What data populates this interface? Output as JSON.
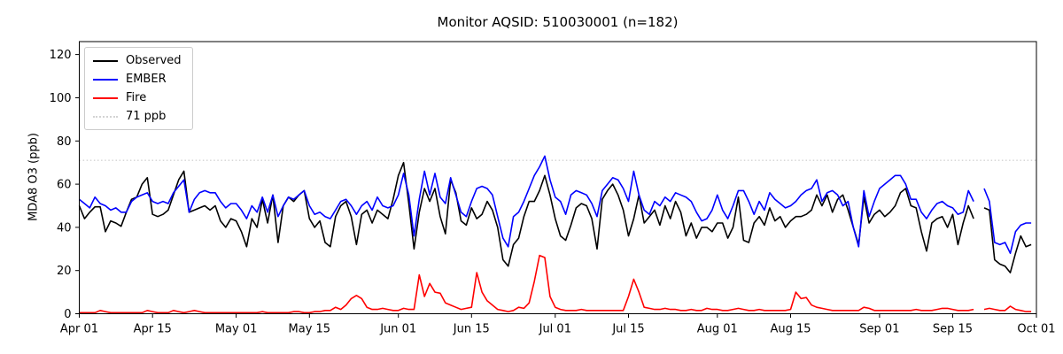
{
  "figure": {
    "title": "Monitor AQSID: 510030001 (n=182)"
  },
  "chart_data": {
    "type": "line",
    "title": "Monitor AQSID: 510030001 (n=182)",
    "xlabel": "",
    "ylabel": "MDA8 O3 (ppb)",
    "x_start": "Apr 01",
    "x_end": "Oct 01",
    "x_range_days": 183,
    "x_tick_labels": [
      "Apr 01",
      "Apr 15",
      "May 01",
      "May 15",
      "Jun 01",
      "Jun 15",
      "Jul 01",
      "Jul 15",
      "Aug 01",
      "Aug 15",
      "Sep 01",
      "Sep 15",
      "Oct 01"
    ],
    "x_tick_days": [
      0,
      14,
      30,
      44,
      61,
      75,
      91,
      105,
      122,
      136,
      153,
      167,
      183
    ],
    "y_ticks": [
      0,
      20,
      40,
      60,
      80,
      100,
      120
    ],
    "ylim": [
      0,
      126
    ],
    "grid": false,
    "legend_position": "upper-left",
    "legend": [
      "Observed",
      "EMBER",
      "Fire",
      "71 ppb"
    ],
    "reference_line": {
      "label": "71 ppb",
      "value": 71,
      "color": "#d3d3d3",
      "style": "dotted"
    },
    "series": [
      {
        "name": "Observed",
        "color": "#000000",
        "values": [
          50,
          44,
          47,
          49.5,
          49.5,
          38,
          43,
          42,
          40.5,
          47,
          53,
          54,
          60,
          63,
          46,
          45,
          46,
          48,
          55,
          62,
          66,
          47,
          48,
          49,
          50,
          48,
          50,
          43,
          40,
          44,
          43,
          38,
          31,
          44,
          40,
          53,
          42,
          55,
          33,
          50,
          54,
          52,
          55,
          57,
          44,
          40,
          43,
          33,
          31,
          45,
          50,
          52,
          45,
          32,
          46,
          48,
          42,
          48,
          46,
          44,
          53,
          64,
          70,
          51,
          30,
          47,
          58,
          52,
          58,
          45,
          37,
          62,
          56,
          43,
          41,
          49,
          44,
          46,
          52,
          48,
          40,
          25,
          22,
          32,
          35,
          45,
          52,
          52,
          57,
          64,
          55,
          44,
          36,
          34,
          41,
          49,
          51,
          50,
          44,
          30,
          53,
          57,
          60,
          55,
          48,
          36,
          44,
          55,
          42,
          45,
          48,
          41,
          50,
          44,
          52,
          47,
          36,
          42,
          35,
          40,
          40,
          38,
          42,
          42,
          35,
          40,
          54,
          34,
          33,
          42,
          45,
          41,
          49,
          43,
          45,
          40,
          43,
          45,
          45,
          46,
          48,
          55,
          50,
          55,
          47,
          53,
          55,
          48,
          40,
          32,
          54,
          42,
          46,
          48,
          45,
          47,
          50,
          56,
          58,
          50,
          49,
          38,
          29,
          42,
          44,
          45,
          40,
          46,
          32,
          42,
          50,
          44,
          null,
          49,
          48,
          25,
          23,
          22,
          19,
          28,
          36,
          31,
          32
        ]
      },
      {
        "name": "EMBER",
        "color": "#0000ff",
        "values": [
          53,
          51,
          49,
          54,
          51,
          50,
          48,
          49,
          47,
          47,
          52,
          54,
          55,
          56,
          52,
          51,
          52,
          51,
          56,
          59,
          62,
          47,
          53,
          56,
          57,
          56,
          56,
          52,
          49,
          51,
          51,
          48,
          44,
          50,
          47,
          54,
          47,
          55,
          45,
          50,
          54,
          53,
          55,
          57,
          50,
          46,
          47,
          45,
          44,
          48,
          52,
          53,
          50,
          46,
          50,
          52,
          48,
          54,
          50,
          49,
          50,
          55,
          65,
          55,
          36,
          53,
          66,
          55,
          65,
          54,
          51,
          63,
          55,
          47,
          45,
          52,
          58,
          59,
          58,
          55,
          45,
          35,
          31,
          45,
          47,
          52,
          58,
          64,
          68,
          73,
          62,
          54,
          52,
          46,
          55,
          57,
          56,
          55,
          51,
          45,
          57,
          60,
          63,
          62,
          58,
          52,
          66,
          55,
          48,
          46,
          52,
          50,
          54,
          52,
          56,
          55,
          54,
          52,
          47,
          43,
          44,
          48,
          55,
          48,
          44,
          50,
          57,
          57,
          52,
          46,
          52,
          48,
          56,
          53,
          51,
          49,
          50,
          52,
          55,
          57,
          58,
          62,
          52,
          56,
          57,
          55,
          50,
          52,
          40,
          31,
          57,
          45,
          52,
          58,
          60,
          62,
          64,
          64,
          60,
          53,
          53,
          47,
          44,
          48,
          51,
          52,
          50,
          49,
          46,
          47,
          57,
          52,
          null,
          58,
          52,
          33,
          32,
          33,
          28,
          38,
          41,
          42,
          42
        ]
      },
      {
        "name": "Fire",
        "color": "#ff0000",
        "values": [
          0.5,
          0.5,
          0.5,
          0.5,
          1.5,
          1,
          0.5,
          0.5,
          0.5,
          0.5,
          0.5,
          0.5,
          0.5,
          1.5,
          1,
          0.5,
          0.5,
          0.5,
          1.5,
          1,
          0.5,
          1,
          1.5,
          1,
          0.5,
          0.5,
          0.5,
          0.5,
          0.5,
          0.5,
          0.5,
          0.5,
          0.5,
          0.5,
          0.5,
          1,
          0.5,
          0.5,
          0.5,
          0.5,
          0.5,
          1,
          1,
          0.5,
          0.5,
          1,
          1,
          1.5,
          1.5,
          3,
          2,
          4,
          7,
          8.5,
          7,
          3,
          2,
          2,
          2.5,
          2,
          1.5,
          1.5,
          2.5,
          2,
          2,
          18,
          8,
          14,
          10,
          9.5,
          5,
          4,
          3,
          2,
          2.5,
          3,
          19,
          10,
          6,
          4,
          2,
          1.5,
          1,
          1.5,
          3,
          2.5,
          5,
          15,
          27,
          26,
          8,
          3,
          2,
          1.5,
          1.5,
          1.5,
          2,
          1.5,
          1.5,
          1.5,
          1.5,
          1.5,
          1.5,
          1.5,
          1.5,
          8,
          16,
          10,
          3,
          2.5,
          2,
          2,
          2.5,
          2,
          2,
          1.5,
          1.5,
          2,
          1.5,
          1.5,
          2.5,
          2,
          2,
          1.5,
          1.5,
          2,
          2.5,
          2,
          1.5,
          1.5,
          2,
          1.5,
          1.5,
          1.5,
          1.5,
          1.5,
          2,
          10,
          7,
          7.5,
          4,
          3,
          2.5,
          2,
          1.5,
          1.5,
          1.5,
          1.5,
          1.5,
          1.5,
          3,
          2.5,
          1.5,
          1.5,
          1.5,
          1.5,
          1.5,
          1.5,
          1.5,
          1.5,
          2,
          1.5,
          1.5,
          1.5,
          2,
          2.5,
          2.5,
          2,
          1.5,
          1.5,
          1.5,
          2,
          null,
          2,
          2.5,
          2,
          1.5,
          1.5,
          3.5,
          2,
          1.5,
          1,
          1
        ]
      }
    ]
  }
}
